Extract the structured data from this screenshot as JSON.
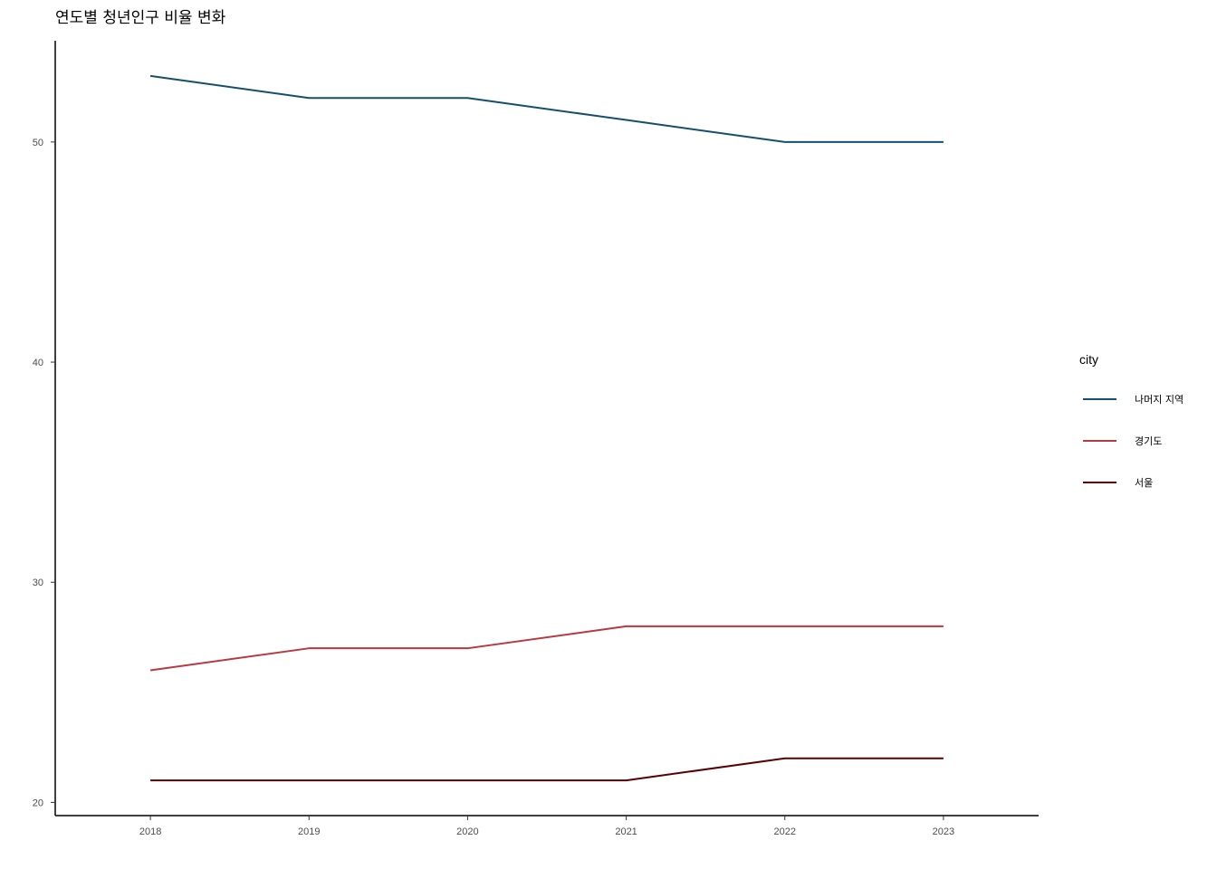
{
  "chart_data": {
    "type": "line",
    "title": "연도별 청년인구 비율 변화",
    "xlabel": "",
    "ylabel": "",
    "x": [
      2018,
      2019,
      2020,
      2021,
      2022,
      2023
    ],
    "xlim": [
      2017.4,
      2023.6
    ],
    "ylim": [
      19.4,
      54.6
    ],
    "yticks": [
      20,
      30,
      40,
      50
    ],
    "grid": false,
    "legend": {
      "title": "city",
      "position": "right"
    },
    "series": [
      {
        "name": "나머지 지역",
        "color": "#14506e",
        "values": [
          53,
          52,
          52,
          51,
          50,
          50
        ]
      },
      {
        "name": "경기도",
        "color": "#b8393f",
        "values": [
          26,
          27,
          27,
          28,
          28,
          28
        ]
      },
      {
        "name": "서울",
        "color": "#5a0000",
        "values": [
          21,
          21,
          21,
          21,
          22,
          22
        ]
      }
    ]
  }
}
